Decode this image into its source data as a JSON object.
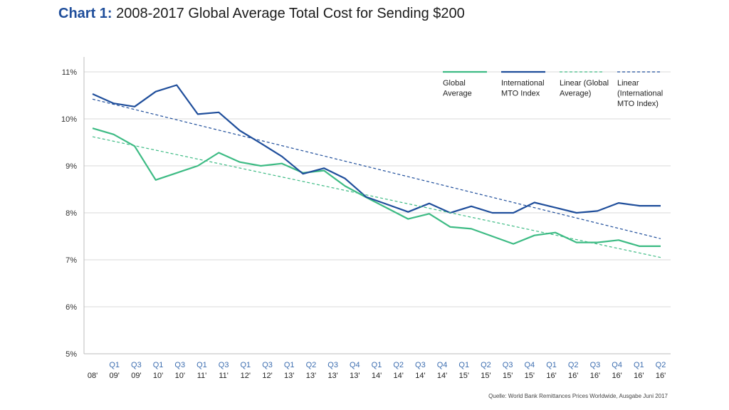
{
  "header": {
    "title_prefix": "Chart 1:",
    "title_rest": "2008-2017 Global Average Total Cost for Sending $200"
  },
  "source": "Quelle: World Bank Remittances Prices Worldwide, Ausgabe Juni 2017",
  "chart_data": {
    "type": "line",
    "title": "Chart 1: 2008-2017 Global Average Total Cost for Sending $200",
    "xlabel": "",
    "ylabel": "",
    "ylim": [
      5,
      11
    ],
    "yticks": [
      "5%",
      "6%",
      "7%",
      "8%",
      "9%",
      "10%",
      "11%"
    ],
    "ytick_values": [
      5,
      6,
      7,
      8,
      9,
      10,
      11
    ],
    "grid": "horizontal",
    "legend_position": "top-right",
    "x_quarter_labels": [
      "",
      "Q1",
      "Q3",
      "Q1",
      "Q3",
      "Q1",
      "Q3",
      "Q1",
      "Q3",
      "Q1",
      "Q2",
      "Q3",
      "Q4",
      "Q1",
      "Q2",
      "Q3",
      "Q4",
      "Q1",
      "Q2",
      "Q3",
      "Q4",
      "Q1",
      "Q2",
      "Q3",
      "Q4",
      "Q1",
      "Q2"
    ],
    "x_year_labels": [
      "08'",
      "09'",
      "09'",
      "10'",
      "10'",
      "11'",
      "11'",
      "12'",
      "12'",
      "13'",
      "13'",
      "13'",
      "13'",
      "14'",
      "14'",
      "14'",
      "14'",
      "15'",
      "15'",
      "15'",
      "15'",
      "16'",
      "16'",
      "16'",
      "16'",
      "16'",
      "16'"
    ],
    "x_positions": [
      0.5,
      1,
      1.5,
      2,
      2.5,
      3,
      3.5,
      4,
      4.5,
      5,
      5.5,
      6,
      6.5,
      7,
      7.5,
      8,
      8.5,
      9,
      9.5,
      10,
      10.5,
      11,
      11.5,
      12,
      12.5,
      13,
      13.5,
      14,
      14.5,
      15,
      15.5,
      16,
      16.5,
      17,
      17.5,
      18,
      18.5,
      19,
      19.5,
      20,
      20.5,
      21,
      21.5,
      22,
      22.5,
      23,
      23.5,
      24,
      24.5,
      25,
      25.5,
      26,
      26.5,
      27
    ],
    "x_range": [
      0.5,
      27
    ],
    "series": [
      {
        "name": "Global Average",
        "color": "#3dbb84",
        "dashed": false,
        "x": [
          0.5,
          1.5,
          2.5,
          3.5,
          4.5,
          5.5,
          6.5,
          7.5,
          8.5,
          9.5,
          10.5,
          11.5,
          12.5,
          13.5,
          14.5,
          15.5,
          16.5,
          17.5,
          18.5,
          19.5,
          20.5,
          21.5,
          22.5,
          23.5,
          24.5,
          25.5,
          26.5,
          27
        ],
        "values": [
          9.8,
          9.67,
          9.42,
          8.7,
          8.85,
          9.0,
          9.28,
          9.08,
          9.0,
          9.05,
          8.85,
          8.9,
          8.57,
          8.33,
          8.1,
          7.87,
          7.98,
          7.7,
          7.66,
          7.5,
          7.34,
          7.52,
          7.58,
          7.37,
          7.37,
          7.42,
          7.29,
          7.29
        ]
      },
      {
        "name": "International MTO Index",
        "color": "#1f4e9b",
        "dashed": false,
        "x": [
          0.5,
          1.5,
          2.5,
          3.5,
          4.5,
          5.5,
          6.5,
          7.5,
          8.5,
          9.5,
          10.5,
          11.5,
          12.5,
          13.5,
          14.5,
          15.5,
          16.5,
          17.5,
          18.5,
          19.5,
          20.5,
          21.5,
          22.5,
          23.5,
          24.5,
          25.5,
          26.5,
          27
        ],
        "values": [
          10.53,
          10.33,
          10.26,
          10.58,
          10.72,
          10.1,
          10.14,
          9.75,
          9.48,
          9.2,
          8.83,
          8.95,
          8.73,
          8.34,
          8.18,
          8.02,
          8.2,
          8.0,
          8.14,
          8.0,
          8.0,
          8.22,
          8.11,
          8.0,
          8.04,
          8.21,
          8.15,
          8.15
        ]
      },
      {
        "name": "Linear (Global Average)",
        "color": "#3dbb84",
        "dashed": true,
        "x": [
          0.5,
          27
        ],
        "values": [
          9.62,
          7.05
        ]
      },
      {
        "name": "Linear (International MTO Index)",
        "color": "#1f4e9b",
        "dashed": true,
        "x": [
          0.5,
          27
        ],
        "values": [
          10.42,
          7.45
        ]
      }
    ],
    "legend": [
      {
        "lines": [
          "Global",
          "Average"
        ]
      },
      {
        "lines": [
          "International",
          "MTO Index"
        ]
      },
      {
        "lines": [
          "Linear (Global",
          "Average)"
        ]
      },
      {
        "lines": [
          "Linear",
          "(International",
          "MTO Index)"
        ]
      }
    ]
  }
}
